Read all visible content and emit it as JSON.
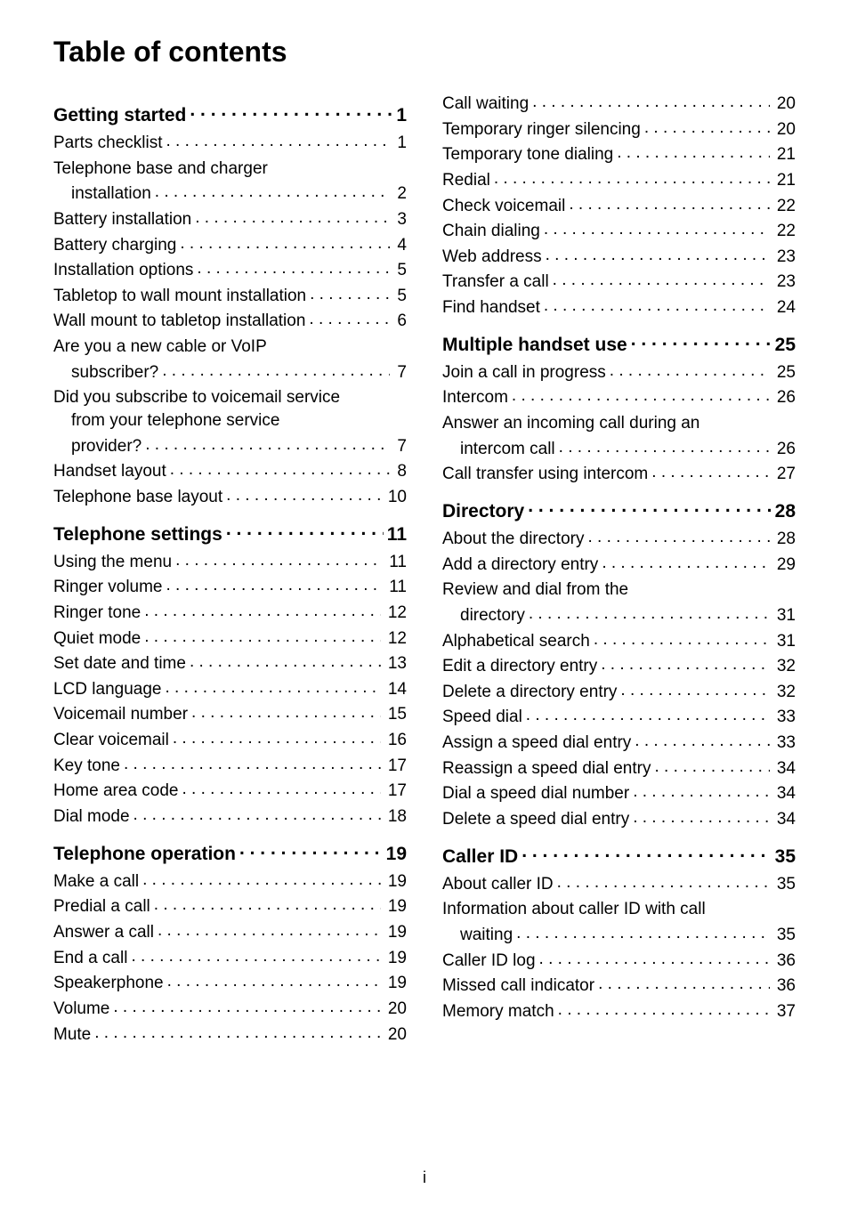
{
  "title": "Table of contents",
  "footer": "i",
  "left_column": [
    {
      "kind": "section",
      "label": "Getting started",
      "page": "1"
    },
    {
      "kind": "entry",
      "label": "Parts checklist",
      "page": "1"
    },
    {
      "kind": "multiline",
      "line1": "Telephone base and charger",
      "line2": "installation",
      "page": "2"
    },
    {
      "kind": "entry",
      "label": "Battery installation",
      "page": "3"
    },
    {
      "kind": "entry",
      "label": "Battery charging",
      "page": "4"
    },
    {
      "kind": "entry",
      "label": "Installation options",
      "page": "5"
    },
    {
      "kind": "entry",
      "label": "Tabletop to wall mount installation",
      "page": "5"
    },
    {
      "kind": "entry",
      "label": "Wall mount to tabletop installation",
      "page": "6"
    },
    {
      "kind": "multiline",
      "line1": "Are you a new cable or VoIP",
      "line2": "subscriber?",
      "page": "7"
    },
    {
      "kind": "multiline3",
      "line1": "Did you subscribe to voicemail service",
      "line2": "from your telephone service",
      "line3": "provider?",
      "page": "7"
    },
    {
      "kind": "entry",
      "label": "Handset layout",
      "page": "8"
    },
    {
      "kind": "entry",
      "label": "Telephone base layout",
      "page": "10"
    },
    {
      "kind": "section",
      "label": "Telephone settings",
      "page": "11"
    },
    {
      "kind": "entry",
      "label": "Using the menu",
      "page": "11"
    },
    {
      "kind": "entry",
      "label": "Ringer volume",
      "page": "11"
    },
    {
      "kind": "entry",
      "label": "Ringer tone",
      "page": "12"
    },
    {
      "kind": "entry",
      "label": "Quiet mode",
      "page": "12"
    },
    {
      "kind": "entry",
      "label": "Set date and time",
      "page": "13"
    },
    {
      "kind": "entry",
      "label": "LCD language",
      "page": "14"
    },
    {
      "kind": "entry",
      "label": "Voicemail number",
      "page": "15"
    },
    {
      "kind": "entry",
      "label": "Clear voicemail",
      "page": "16"
    },
    {
      "kind": "entry",
      "label": "Key tone",
      "page": "17"
    },
    {
      "kind": "entry",
      "label": "Home area code",
      "page": "17"
    },
    {
      "kind": "entry",
      "label": "Dial mode",
      "page": "18"
    },
    {
      "kind": "section",
      "label": "Telephone operation",
      "page": "19"
    },
    {
      "kind": "entry",
      "label": "Make a call",
      "page": "19"
    },
    {
      "kind": "entry",
      "label": "Predial a call",
      "page": "19"
    },
    {
      "kind": "entry",
      "label": "Answer a call",
      "page": "19"
    },
    {
      "kind": "entry",
      "label": "End a call",
      "page": "19"
    },
    {
      "kind": "entry",
      "label": "Speakerphone",
      "page": "19"
    },
    {
      "kind": "entry",
      "label": "Volume",
      "page": "20"
    },
    {
      "kind": "entry",
      "label": "Mute",
      "page": "20"
    }
  ],
  "right_column": [
    {
      "kind": "entry",
      "label": "Call waiting",
      "page": "20"
    },
    {
      "kind": "entry",
      "label": "Temporary ringer silencing",
      "page": "20"
    },
    {
      "kind": "entry",
      "label": "Temporary tone dialing",
      "page": "21"
    },
    {
      "kind": "entry",
      "label": "Redial",
      "page": "21"
    },
    {
      "kind": "entry",
      "label": "Check voicemail",
      "page": "22"
    },
    {
      "kind": "entry",
      "label": "Chain dialing",
      "page": "22"
    },
    {
      "kind": "entry",
      "label": "Web address",
      "page": "23"
    },
    {
      "kind": "entry",
      "label": "Transfer a call",
      "page": "23"
    },
    {
      "kind": "entry",
      "label": "Find handset",
      "page": "24"
    },
    {
      "kind": "section",
      "label": "Multiple handset use",
      "page": "25"
    },
    {
      "kind": "entry",
      "label": "Join a call in progress",
      "page": "25"
    },
    {
      "kind": "entry",
      "label": "Intercom",
      "page": "26"
    },
    {
      "kind": "multiline",
      "line1": "Answer an incoming call during an",
      "line2": "intercom call",
      "page": "26"
    },
    {
      "kind": "entry",
      "label": "Call transfer using intercom",
      "page": "27"
    },
    {
      "kind": "section",
      "label": "Directory",
      "page": "28"
    },
    {
      "kind": "entry",
      "label": "About the directory",
      "page": "28"
    },
    {
      "kind": "entry",
      "label": "Add a directory entry",
      "page": "29"
    },
    {
      "kind": "multiline",
      "line1": "Review and dial from the",
      "line2": "directory",
      "page": "31"
    },
    {
      "kind": "entry",
      "label": "Alphabetical search",
      "page": "31"
    },
    {
      "kind": "entry",
      "label": "Edit a directory entry",
      "page": "32"
    },
    {
      "kind": "entry",
      "label": "Delete a directory entry",
      "page": "32"
    },
    {
      "kind": "entry",
      "label": "Speed dial",
      "page": "33"
    },
    {
      "kind": "entry",
      "label": "Assign a speed dial entry",
      "page": "33"
    },
    {
      "kind": "entry",
      "label": "Reassign a speed dial entry",
      "page": "34"
    },
    {
      "kind": "entry",
      "label": "Dial a speed dial number",
      "page": "34"
    },
    {
      "kind": "entry",
      "label": "Delete a speed dial entry",
      "page": "34"
    },
    {
      "kind": "section",
      "label": "Caller ID",
      "page": "35"
    },
    {
      "kind": "entry",
      "label": "About caller ID",
      "page": "35"
    },
    {
      "kind": "multiline",
      "line1": "Information about caller ID with call",
      "line2": "waiting",
      "page": "35"
    },
    {
      "kind": "entry",
      "label": "Caller ID log",
      "page": "36"
    },
    {
      "kind": "entry",
      "label": "Missed call indicator",
      "page": "36"
    },
    {
      "kind": "entry",
      "label": "Memory match",
      "page": "37"
    }
  ]
}
